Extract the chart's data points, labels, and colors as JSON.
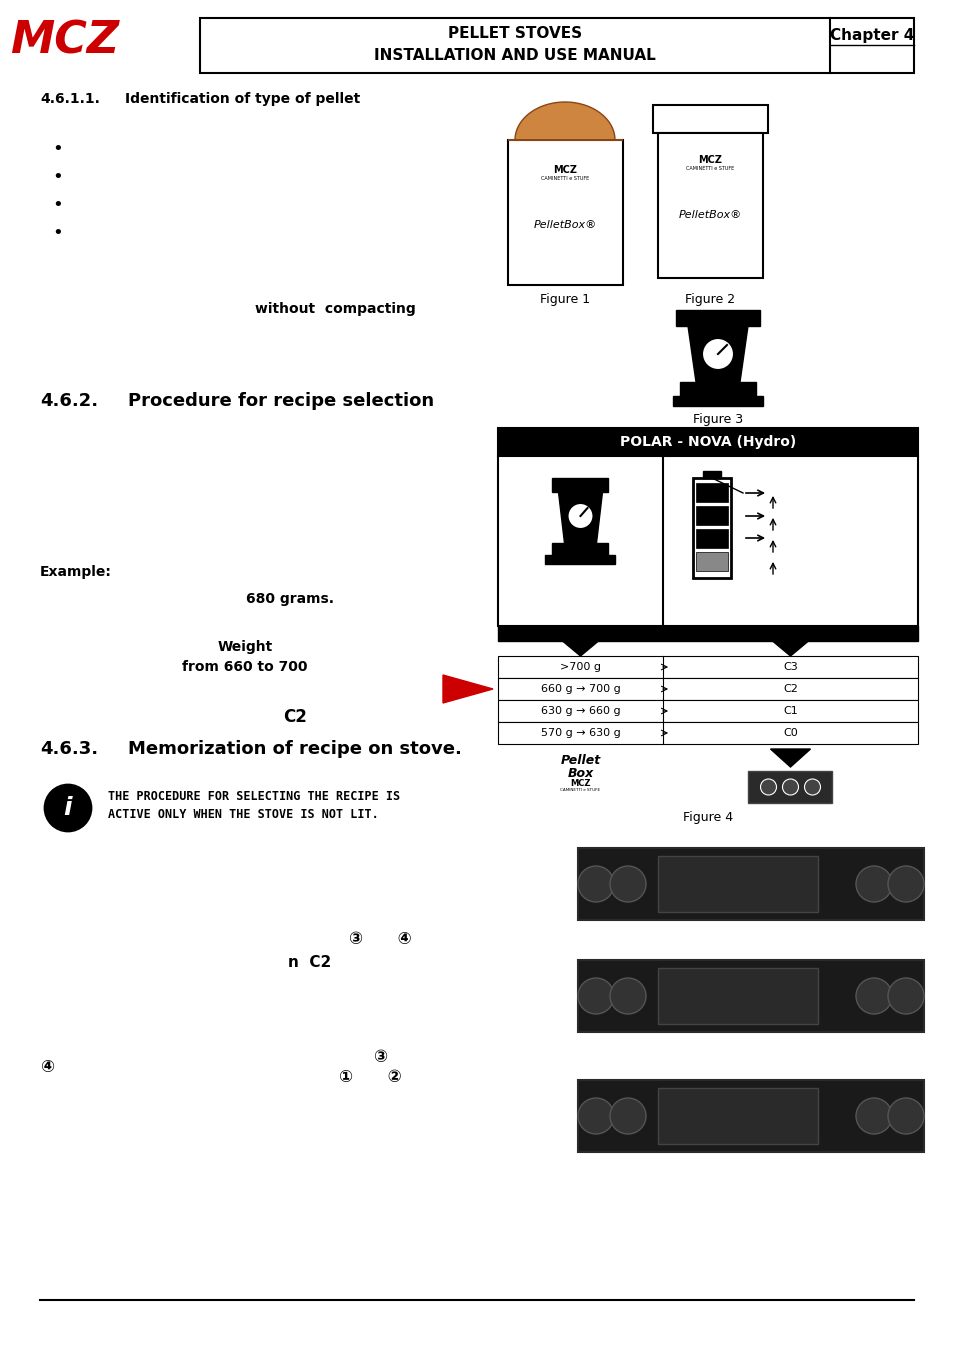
{
  "page_width": 9.54,
  "page_height": 13.5,
  "bg_color": "#ffffff",
  "header_title1": "PELLET STOVES",
  "header_title2": "INSTALLATION AND USE MANUAL",
  "header_chapter": "Chapter 4",
  "sec_461_num": "4.6.1.1.",
  "sec_461_title": "Identification of type of pellet",
  "fig1_label": "Figure 1",
  "fig2_label": "Figure 2",
  "fig3_label": "Figure 3",
  "without_compacting": "without  compacting",
  "sec_462_num": "4.6.2.",
  "sec_462_title": "Procedure for recipe selection",
  "polar_nova_title": "POLAR - NOVA (Hydro)",
  "table_rows": [
    [
      ">700 g",
      "C3"
    ],
    [
      "660 g → 700 g",
      "C2"
    ],
    [
      "630 g → 660 g",
      "C1"
    ],
    [
      "570 g → 630 g",
      "C0"
    ]
  ],
  "fig4_label": "Figure 4",
  "example_label": "Example:",
  "weight_value": "680 grams.",
  "weight_desc1": "Weight",
  "weight_desc2": "from 660 to 700",
  "c2_label": "C2",
  "sec_463_num": "4.6.3.",
  "sec_463_title": "Memorization of recipe on stove.",
  "info_line1": "THE PROCEDURE FOR SELECTING THE RECIPE IS",
  "info_line2": "ACTIVE ONLY WHEN THE STOVE IS NOT LIT.",
  "step1_nums": "③      ④",
  "n_c2_text": "n  C2",
  "step2_num3": "③",
  "step2_num4_left": "④",
  "step2_nums12": "①      ②",
  "red_arrow_color": "#cc0000",
  "mcz_logo_color": "#cc0000",
  "black": "#000000",
  "white": "#ffffff",
  "dark_panel": "#1e1e1e"
}
